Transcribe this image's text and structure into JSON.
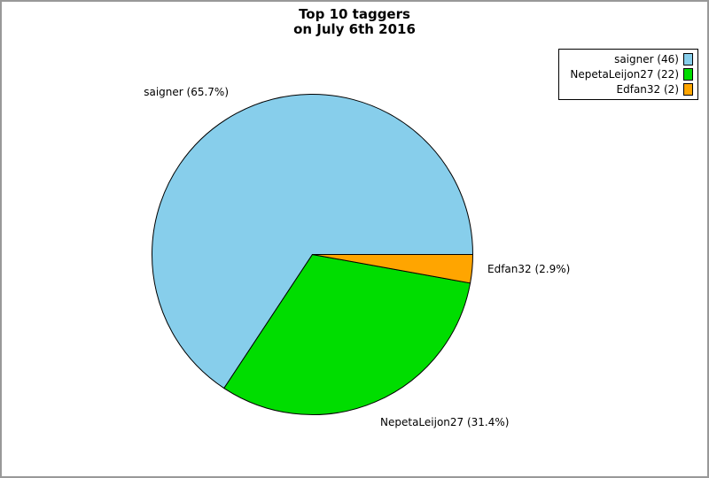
{
  "title": {
    "line1": "Top 10 taggers",
    "line2": "on July 6th 2016"
  },
  "chart_data": {
    "type": "pie",
    "title": "Top 10 taggers on July 6th 2016",
    "categories": [
      "saigner",
      "NepetaLeijon27",
      "Edfan32"
    ],
    "values": [
      46,
      22,
      2
    ],
    "percentages": [
      65.7,
      31.4,
      2.9
    ],
    "slice_labels": [
      "saigner (65.7%)",
      "NepetaLeijon27 (31.4%)",
      "Edfan32 (2.9%)"
    ],
    "legend_labels": [
      "saigner (46)",
      "NepetaLeijon27 (22)",
      "Edfan32 (2)"
    ],
    "colors": [
      "#87CEEB",
      "#00DD00",
      "#FFA500"
    ],
    "edge_color": "#000000",
    "start_angle_deg": 0,
    "direction": "counterclockwise",
    "legend_position": "upper right",
    "background_color": "#ffffff",
    "border_color": "#999999"
  }
}
